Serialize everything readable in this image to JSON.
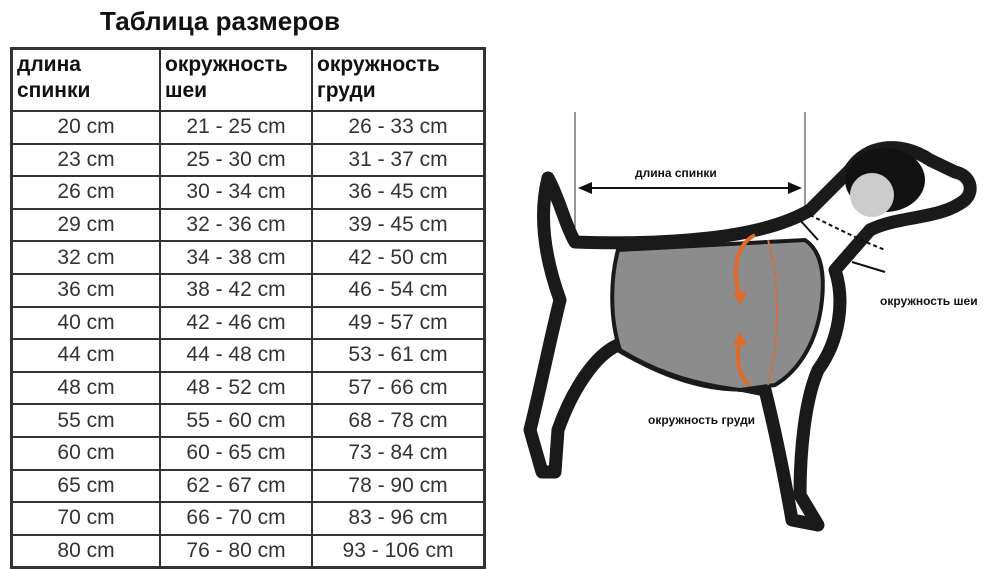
{
  "title": "Таблица размеров",
  "table": {
    "headers": [
      [
        "длина",
        "спинки"
      ],
      [
        "окружность",
        "шеи"
      ],
      [
        "окружность",
        "груди"
      ]
    ],
    "rows": [
      [
        "20 cm",
        "21 - 25 cm",
        "26 - 33 cm"
      ],
      [
        "23 cm",
        "25 - 30 cm",
        "31 - 37 cm"
      ],
      [
        "26 cm",
        "30 - 34 cm",
        "36 - 45 cm"
      ],
      [
        "29 cm",
        "32 - 36 cm",
        "39 - 45 cm"
      ],
      [
        "32 cm",
        "34 - 38 cm",
        "42 - 50 cm"
      ],
      [
        "36 cm",
        "38 - 42 cm",
        "46 - 54 cm"
      ],
      [
        "40 cm",
        "42 - 46 cm",
        "49 - 57 cm"
      ],
      [
        "44 cm",
        "44 - 48 cm",
        "53 - 61 cm"
      ],
      [
        "48 cm",
        "48 - 52 cm",
        "57 - 66 cm"
      ],
      [
        "55 cm",
        "55 - 60 cm",
        "68 - 78 cm"
      ],
      [
        "60 cm",
        "60 - 65 cm",
        "73 - 84 cm"
      ],
      [
        "65 cm",
        "62 - 67 cm",
        "78 - 90 cm"
      ],
      [
        "70 cm",
        "66 - 70 cm",
        "83 - 96 cm"
      ],
      [
        "80 cm",
        "76 - 80 cm",
        "93 - 106 cm"
      ]
    ]
  },
  "diagram": {
    "back_length_label": "длина спинки",
    "neck_label": "окружность шеи",
    "chest_label": "окружность груди",
    "colors": {
      "outline": "#1a1a1a",
      "vest": "#8c8c8c",
      "arrow": "#e06a2a"
    }
  }
}
